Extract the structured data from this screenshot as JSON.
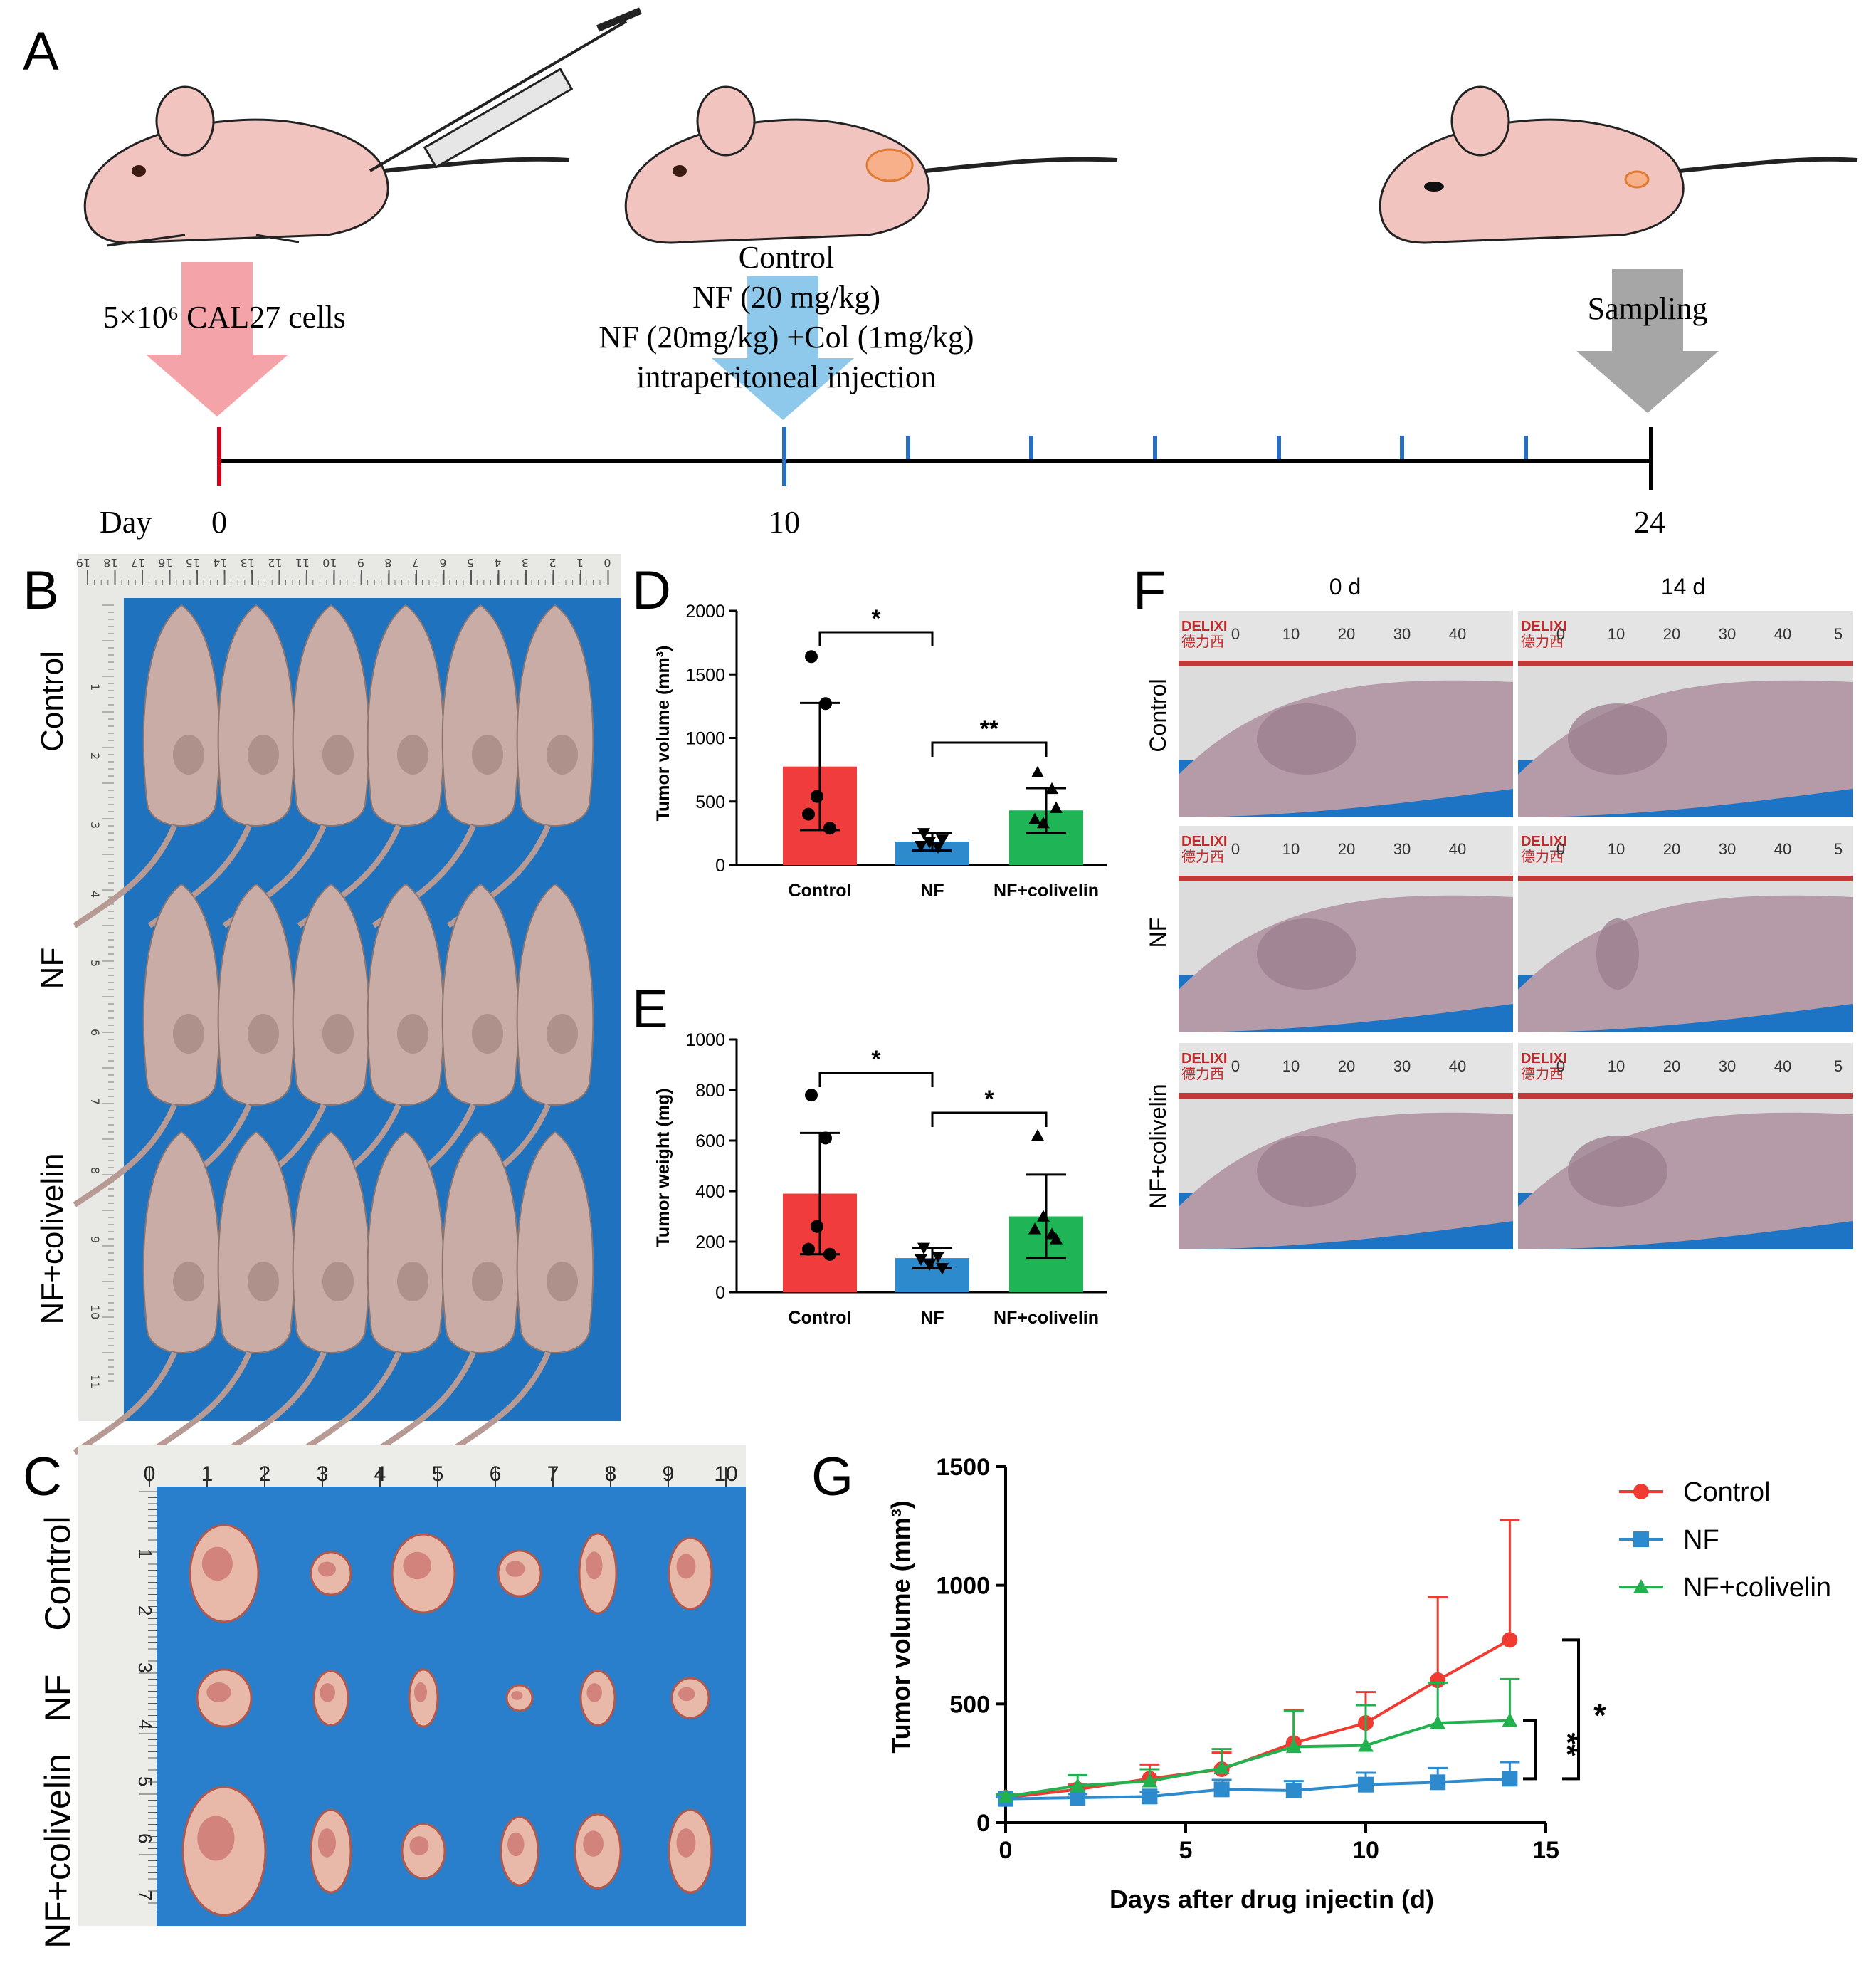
{
  "panel_labels": {
    "a": "A",
    "b": "B",
    "c": "C",
    "d": "D",
    "e": "E",
    "f": "F",
    "g": "G"
  },
  "timeline": {
    "day_label": "Day",
    "ticks": [
      "0",
      "10",
      "24"
    ],
    "inoculation": "5×10⁶ CAL27 cells",
    "treatment_lines": [
      "Control",
      "NF (20 mg/kg)",
      "NF (20mg/kg) +Col (1mg/kg)",
      "intraperitoneal injection"
    ],
    "sampling": "Sampling",
    "colors": {
      "inoculation": "#f4a4a8",
      "treatment": "#8ec8ea",
      "sampling": "#a6a6a6",
      "day0_tick": "#d0021b",
      "dose_tick": "#2a6ebf",
      "mouse": "#f2c4c0"
    }
  },
  "photo_b": {
    "groups": [
      "Control",
      "NF",
      "NF+colivelin"
    ],
    "ruler_top": [
      "19",
      "18",
      "17",
      "16",
      "15",
      "14",
      "13",
      "12",
      "11",
      "10",
      "9",
      "8",
      "7",
      "6",
      "5",
      "4",
      "3",
      "2",
      "1",
      "0"
    ],
    "ruler_side": [
      "1",
      "2",
      "3",
      "4",
      "5",
      "6",
      "7",
      "8",
      "9",
      "10",
      "11"
    ]
  },
  "photo_c": {
    "groups": [
      "Control",
      "NF",
      "NF+colivelin"
    ],
    "ruler_top": [
      "0",
      "1",
      "2",
      "3",
      "4",
      "5",
      "6",
      "7",
      "8",
      "9",
      "10"
    ],
    "ruler_side": [
      "1",
      "2",
      "3",
      "4",
      "5",
      "6",
      "7"
    ]
  },
  "photo_f": {
    "columns": [
      "0 d",
      "14 d"
    ],
    "rows": [
      "Control",
      "NF",
      "NF+colivelin"
    ],
    "ruler_brand": "DELIXI",
    "ruler_brand_cn": "德力西",
    "ruler_ticks": [
      "0",
      "10",
      "20",
      "30",
      "40",
      "5"
    ]
  },
  "chart_data": [
    {
      "type": "bar",
      "panel": "D",
      "categories": [
        "Control",
        "NF",
        "NF+colivelin"
      ],
      "values": [
        775,
        185,
        430
      ],
      "sd": [
        500,
        70,
        175
      ],
      "points": [
        [
          1640,
          1270,
          540,
          290,
          400
        ],
        [
          250,
          140,
          180,
          200,
          150
        ],
        [
          730,
          600,
          330,
          450,
          360
        ]
      ],
      "markers": [
        "circle",
        "triangle-down",
        "triangle-up"
      ],
      "colors": [
        "#f03c3c",
        "#2d8bcd",
        "#1fb455"
      ],
      "ylabel": "Tumor volume (mm³)",
      "ylim": [
        0,
        2000
      ],
      "yticks": [
        "0",
        "500",
        "1000",
        "1500",
        "2000"
      ],
      "significance": [
        {
          "pair": [
            0,
            1
          ],
          "label": "*"
        },
        {
          "pair": [
            1,
            2
          ],
          "label": "**"
        }
      ]
    },
    {
      "type": "bar",
      "panel": "E",
      "categories": [
        "Control",
        "NF",
        "NF+colivelin"
      ],
      "values": [
        390,
        135,
        300
      ],
      "sd": [
        240,
        40,
        165
      ],
      "points": [
        [
          780,
          610,
          260,
          150,
          170
        ],
        [
          175,
          140,
          110,
          95,
          130
        ],
        [
          620,
          230,
          300,
          210,
          250
        ]
      ],
      "markers": [
        "circle",
        "triangle-down",
        "triangle-up"
      ],
      "colors": [
        "#f03c3c",
        "#2d8bcd",
        "#1fb455"
      ],
      "ylabel": "Tumor weight (mg)",
      "ylim": [
        0,
        1000
      ],
      "yticks": [
        "0",
        "200",
        "400",
        "600",
        "800",
        "1000"
      ],
      "significance": [
        {
          "pair": [
            0,
            1
          ],
          "label": "*"
        },
        {
          "pair": [
            1,
            2
          ],
          "label": "*"
        }
      ]
    },
    {
      "type": "line",
      "panel": "G",
      "x": [
        0,
        2,
        4,
        6,
        8,
        10,
        12,
        14
      ],
      "series": [
        {
          "name": "Control",
          "color": "#ef3b32",
          "marker": "circle",
          "values": [
            105,
            140,
            185,
            225,
            335,
            420,
            600,
            770
          ],
          "err": [
            10,
            20,
            60,
            70,
            140,
            130,
            350,
            505
          ]
        },
        {
          "name": "NF",
          "color": "#2d8bcd",
          "marker": "square",
          "values": [
            100,
            105,
            110,
            140,
            135,
            160,
            170,
            185
          ],
          "err": [
            10,
            15,
            20,
            40,
            40,
            50,
            60,
            70
          ]
        },
        {
          "name": "NF+colivelin",
          "color": "#21b24f",
          "marker": "triangle",
          "values": [
            110,
            155,
            175,
            230,
            320,
            325,
            420,
            430
          ],
          "err": [
            10,
            45,
            50,
            80,
            150,
            170,
            170,
            175
          ]
        }
      ],
      "xlabel": "Days after drug injectin (d)",
      "ylabel": "Tumor volume (mm³)",
      "xlim": [
        0,
        15
      ],
      "ylim": [
        0,
        1500
      ],
      "xticks": [
        "0",
        "5",
        "10",
        "15"
      ],
      "yticks": [
        "0",
        "500",
        "1000",
        "1500"
      ],
      "significance": [
        "**",
        "*"
      ]
    }
  ]
}
